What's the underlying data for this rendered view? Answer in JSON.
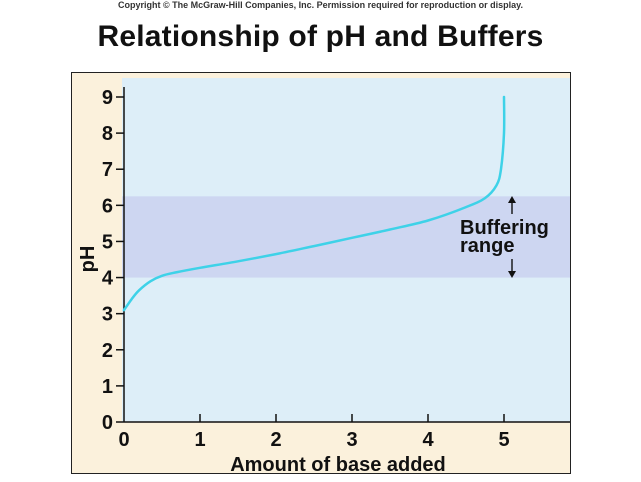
{
  "header": {
    "copyright": "Copyright © The McGraw-Hill Companies, Inc. Permission required for reproduction or display."
  },
  "chart_data": {
    "type": "line",
    "title": "Relationship of pH and Buffers",
    "xlabel": "Amount of base added",
    "ylabel": "pH",
    "xlim": [
      0,
      6
    ],
    "ylim": [
      0,
      9.5
    ],
    "x_ticks": [
      0,
      1,
      2,
      3,
      4,
      5
    ],
    "y_ticks": [
      0,
      1,
      2,
      3,
      4,
      5,
      6,
      7,
      8,
      9
    ],
    "grid": false,
    "series": [
      {
        "color": "#3ed2e8",
        "x": [
          0,
          0.1,
          0.2,
          0.35,
          0.5,
          0.7,
          1.0,
          1.5,
          2.0,
          2.5,
          3.0,
          3.5,
          4.0,
          4.5,
          4.75,
          4.9,
          4.96,
          5.0,
          5.0
        ],
        "y": [
          3.1,
          3.4,
          3.65,
          3.9,
          4.05,
          4.15,
          4.27,
          4.45,
          4.65,
          4.87,
          5.1,
          5.33,
          5.58,
          5.95,
          6.2,
          6.55,
          7.0,
          8.0,
          9.0
        ]
      }
    ],
    "shaded_band": {
      "y_range": [
        4,
        6.25
      ],
      "label_line1": "Buffering",
      "label_line2": "range",
      "color": "#cdd6f1"
    },
    "plot_background": "#ddeef8",
    "frame_background": "#fbf1dc"
  }
}
